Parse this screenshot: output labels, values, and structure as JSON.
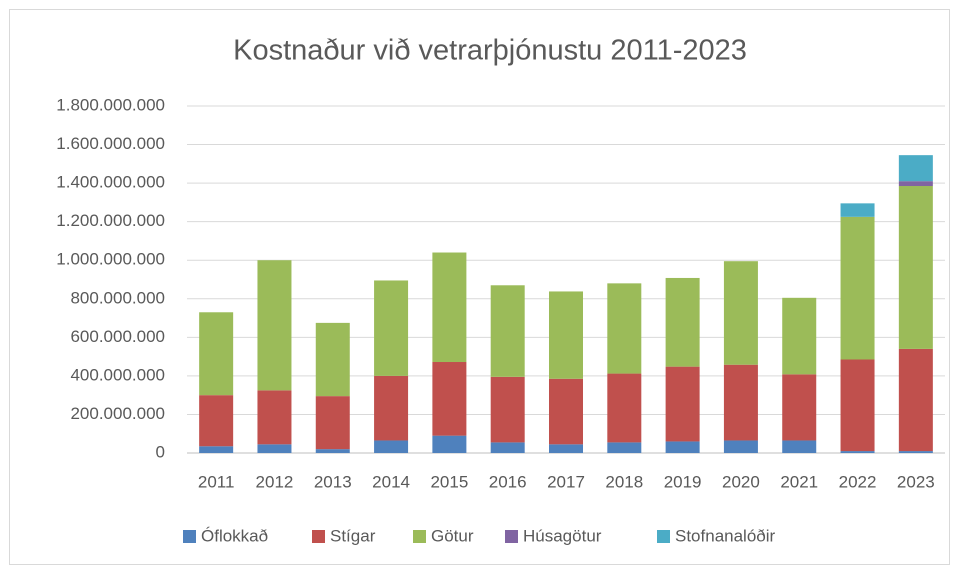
{
  "chart_data": {
    "type": "stacked_bar",
    "title": "Kostnaður við vetrarþjónustu 2011-2023",
    "categories": [
      "2011",
      "2012",
      "2013",
      "2014",
      "2015",
      "2016",
      "2017",
      "2018",
      "2019",
      "2020",
      "2021",
      "2022",
      "2023"
    ],
    "series": [
      {
        "name": "Óflokkað",
        "color": "#4f81bd",
        "values": [
          35000000,
          45000000,
          20000000,
          65000000,
          90000000,
          55000000,
          45000000,
          55000000,
          60000000,
          65000000,
          65000000,
          10000000,
          10000000
        ]
      },
      {
        "name": "Stígar",
        "color": "#c0504d",
        "values": [
          265000000,
          280000000,
          275000000,
          335000000,
          382000000,
          340000000,
          340000000,
          357000000,
          388000000,
          393000000,
          343000000,
          475000000,
          530000000
        ]
      },
      {
        "name": "Götur",
        "color": "#9bbb59",
        "values": [
          430000000,
          675000000,
          380000000,
          495000000,
          568000000,
          475000000,
          453000000,
          468000000,
          460000000,
          537000000,
          397000000,
          740000000,
          845000000
        ]
      },
      {
        "name": "Húsagötur",
        "color": "#8064a2",
        "values": [
          0,
          0,
          0,
          0,
          0,
          0,
          0,
          0,
          0,
          0,
          0,
          0,
          25000000
        ]
      },
      {
        "name": "Stofnanalóðir",
        "color": "#4bacc6",
        "values": [
          0,
          0,
          0,
          0,
          0,
          0,
          0,
          0,
          0,
          0,
          0,
          70000000,
          135000000
        ]
      }
    ],
    "ylim": [
      0,
      1800000000
    ],
    "yticks": [
      0,
      {
        "value": 200000000,
        "label": "200.000.000"
      },
      {
        "value": 400000000,
        "label": "400.000.000"
      },
      {
        "value": 600000000,
        "label": "600.000.000"
      },
      {
        "value": 800000000,
        "label": "800.000.000"
      },
      {
        "value": 1000000000,
        "label": "1.000.000.000"
      },
      {
        "value": 1200000000,
        "label": "1.200.000.000"
      },
      {
        "value": 1400000000,
        "label": "1.400.000.000"
      },
      {
        "value": 1600000000,
        "label": "1.600.000.000"
      },
      {
        "value": 1800000000,
        "label": "1.800.000.000"
      }
    ],
    "grid": true,
    "legend": "bottom"
  }
}
